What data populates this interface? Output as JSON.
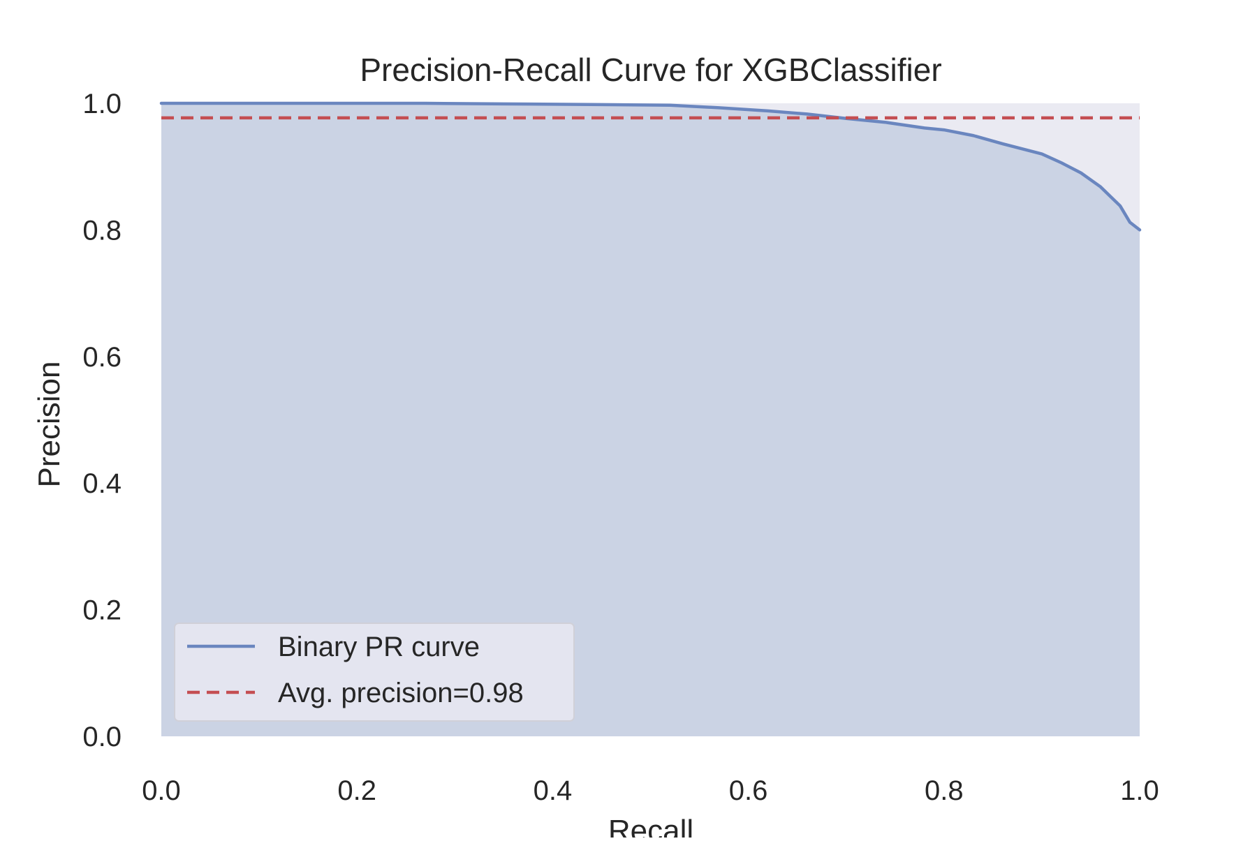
{
  "chart_data": {
    "type": "area",
    "title": "Precision-Recall Curve for XGBClassifier",
    "xlabel": "Recall",
    "ylabel": "Precision",
    "xlim": [
      0.0,
      1.0
    ],
    "ylim": [
      0.0,
      1.0
    ],
    "xticks": [
      "0.0",
      "0.2",
      "0.4",
      "0.6",
      "0.8",
      "1.0"
    ],
    "yticks": [
      "0.0",
      "0.2",
      "0.4",
      "0.6",
      "0.8",
      "1.0"
    ],
    "grid": false,
    "legend_position": "lower-left",
    "series": [
      {
        "name": "Binary PR curve",
        "style": "solid-line-with-filled-area",
        "color": "#6a86bf",
        "fill_color": "#cbd3e4",
        "x": [
          0.0,
          0.1,
          0.2,
          0.27,
          0.35,
          0.45,
          0.52,
          0.57,
          0.62,
          0.66,
          0.7,
          0.74,
          0.78,
          0.8,
          0.83,
          0.86,
          0.88,
          0.9,
          0.92,
          0.94,
          0.96,
          0.97,
          0.98,
          0.99,
          1.0
        ],
        "y": [
          1.0,
          1.0,
          1.0,
          1.0,
          0.999,
          0.998,
          0.997,
          0.993,
          0.988,
          0.983,
          0.976,
          0.97,
          0.961,
          0.958,
          0.949,
          0.936,
          0.928,
          0.92,
          0.906,
          0.89,
          0.868,
          0.853,
          0.838,
          0.812,
          0.8
        ]
      },
      {
        "name": "Avg. precision=0.98",
        "style": "dashed-line",
        "color": "#c44e52",
        "y_constant": 0.977
      }
    ],
    "area_under_curve_note": "",
    "plot_background": "#eaeaf2"
  }
}
